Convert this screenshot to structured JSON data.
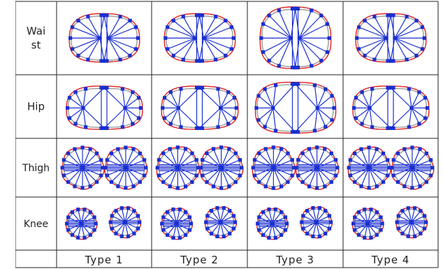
{
  "rows": [
    {
      "id": "waist",
      "label_lines": [
        "Wai",
        "st"
      ],
      "shape": "oval"
    },
    {
      "id": "hip",
      "label_lines": [
        "Hip"
      ],
      "shape": "hip"
    },
    {
      "id": "thigh",
      "label_lines": [
        "Thigh"
      ],
      "shape": "pair"
    },
    {
      "id": "knee",
      "label_lines": [
        "Knee"
      ],
      "shape": "kneepair"
    }
  ],
  "columns": [
    "Type 1",
    "Type 2",
    "Type 3",
    "Type 4"
  ],
  "colors": {
    "outline": "#e0201e",
    "spoke": "#1a2fd0",
    "marker": "#1a2fd0",
    "inner": "#9a9a9a",
    "grid_line": "#222222"
  }
}
